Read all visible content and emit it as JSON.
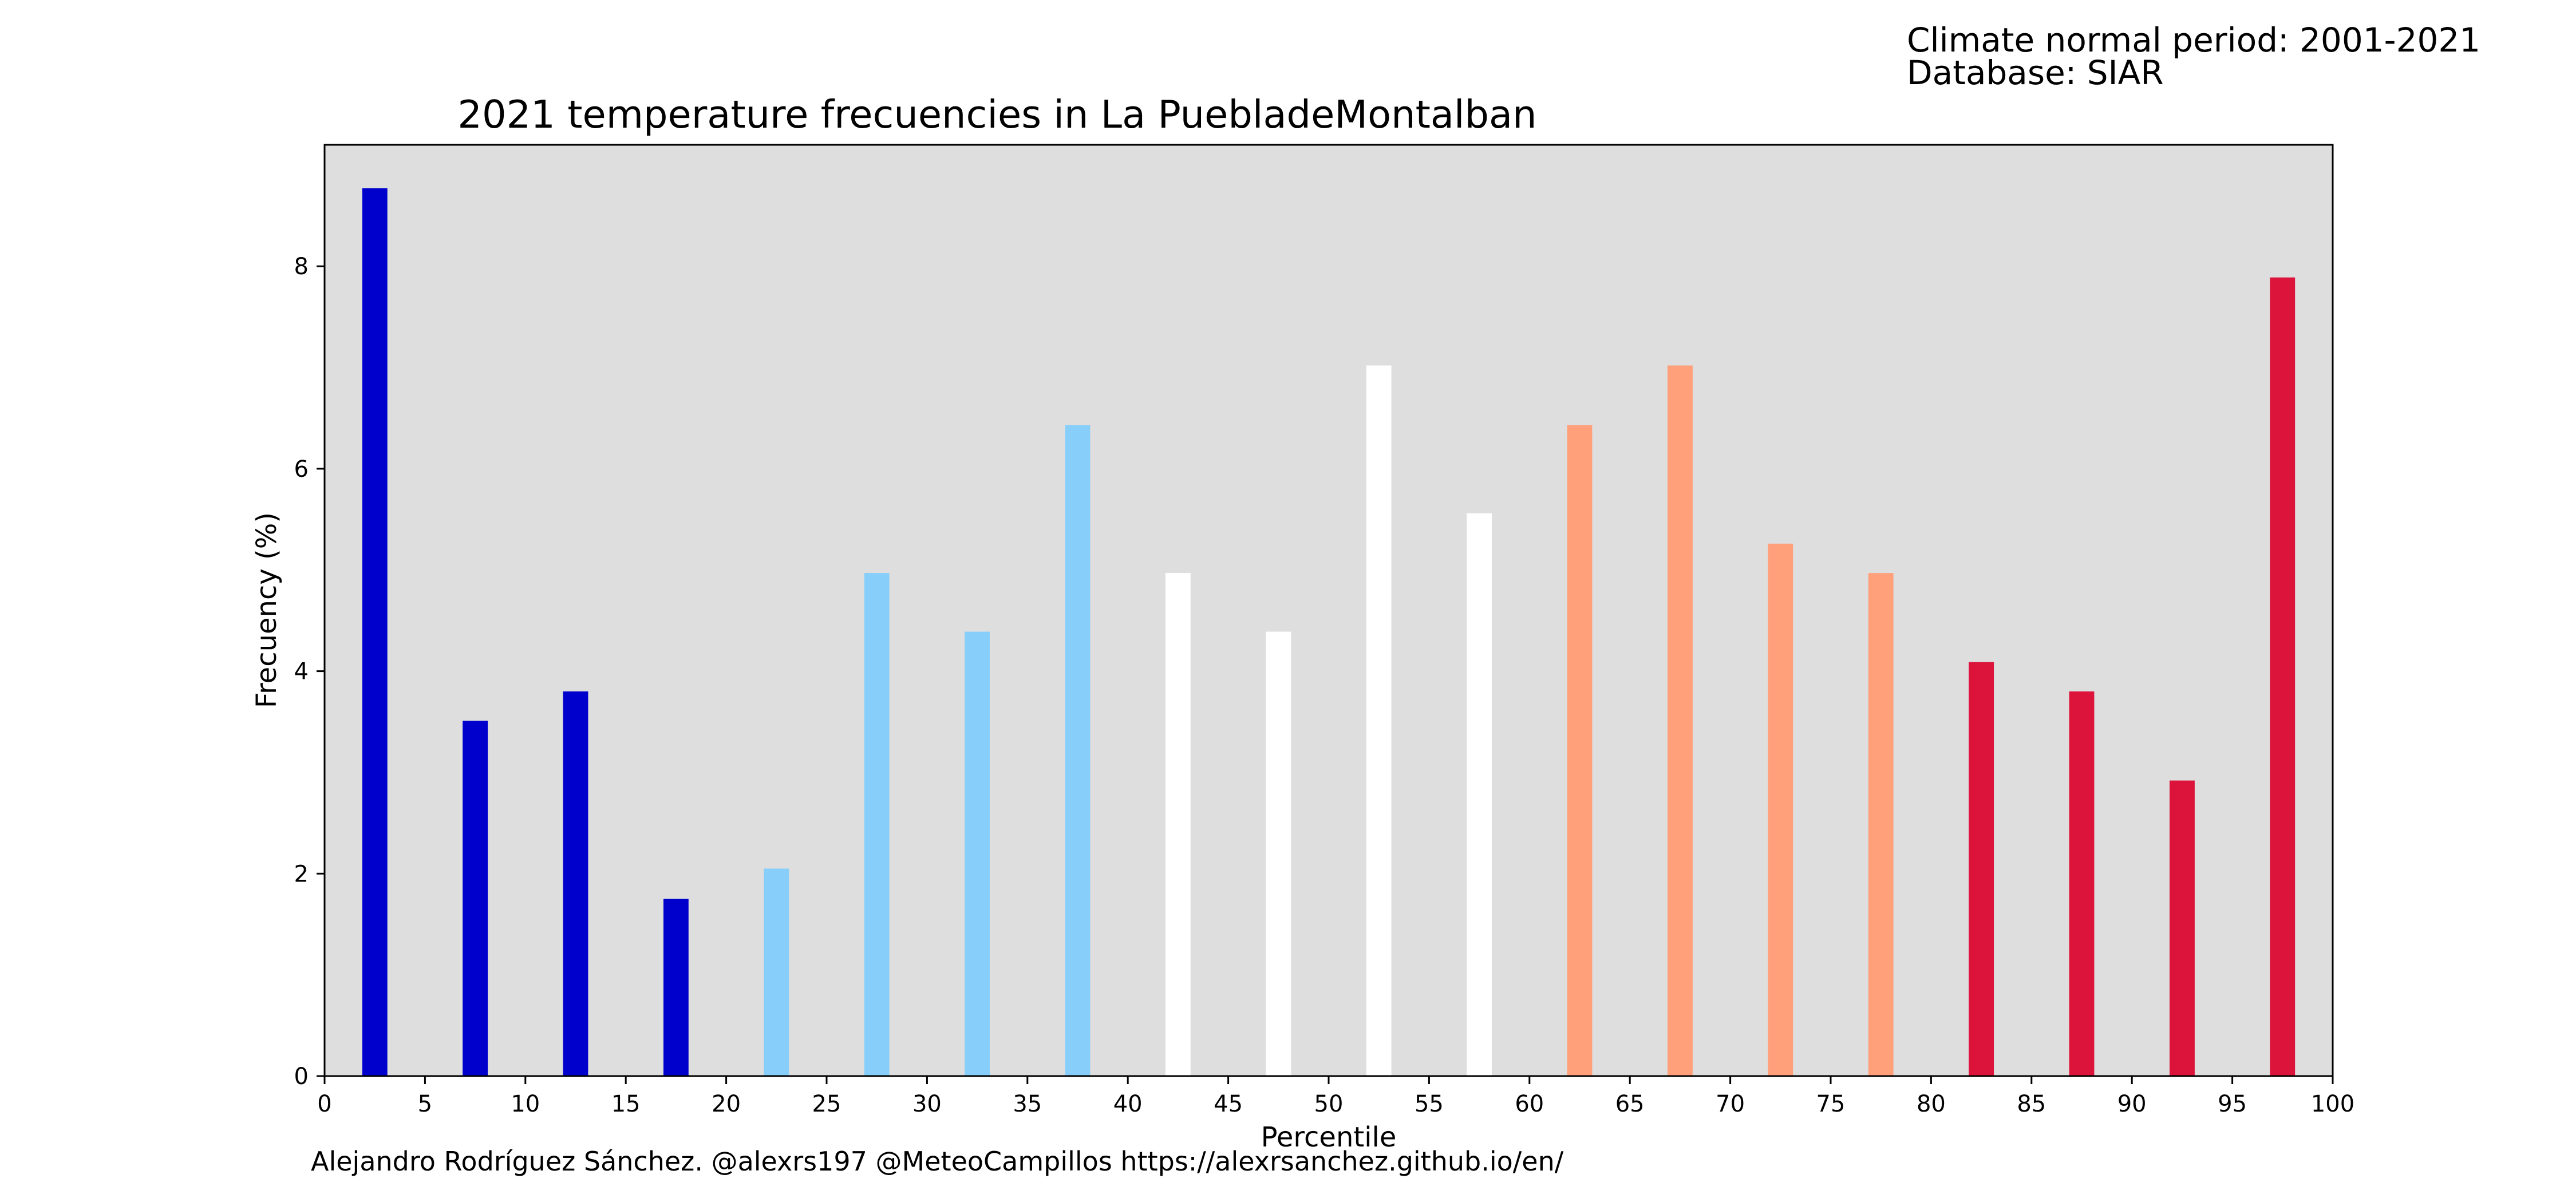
{
  "header": {
    "line1": "Climate normal period: 2001-2021",
    "line2": "Database: SIAR"
  },
  "footer": {
    "credit": "Alejandro Rodríguez Sánchez. @alexrs197 @MeteoCampillos   https://alexrsanchez.github.io/en/"
  },
  "chart_data": {
    "type": "bar",
    "title": "2021 temperature frecuencies in La PuebladeMontalban",
    "xlabel": "Percentile",
    "ylabel": "Frecuency (%)",
    "xlim": [
      0,
      100
    ],
    "ylim": [
      0,
      9.2
    ],
    "x_ticks": [
      0,
      5,
      10,
      15,
      20,
      25,
      30,
      35,
      40,
      45,
      50,
      55,
      60,
      65,
      70,
      75,
      80,
      85,
      90,
      95,
      100
    ],
    "y_ticks": [
      0,
      2,
      4,
      6,
      8
    ],
    "bar_width": 1.25,
    "x": [
      2.5,
      7.5,
      12.5,
      17.5,
      22.5,
      27.5,
      32.5,
      37.5,
      42.5,
      47.5,
      52.5,
      57.5,
      62.5,
      67.5,
      72.5,
      77.5,
      82.5,
      87.5,
      92.5,
      97.5
    ],
    "values": [
      8.77,
      3.51,
      3.8,
      1.75,
      2.05,
      4.97,
      4.39,
      6.43,
      4.97,
      4.39,
      7.02,
      5.56,
      6.43,
      7.02,
      5.26,
      4.97,
      4.09,
      3.8,
      2.92,
      7.89
    ],
    "colors": [
      "#0000cd",
      "#0000cd",
      "#0000cd",
      "#0000cd",
      "#87cefa",
      "#87cefa",
      "#87cefa",
      "#87cefa",
      "#ffffff",
      "#ffffff",
      "#ffffff",
      "#ffffff",
      "#ffa07a",
      "#ffa07a",
      "#ffa07a",
      "#ffa07a",
      "#dc143c",
      "#dc143c",
      "#dc143c",
      "#dc143c"
    ],
    "background": "#dedede",
    "grid": false,
    "legend": false
  }
}
